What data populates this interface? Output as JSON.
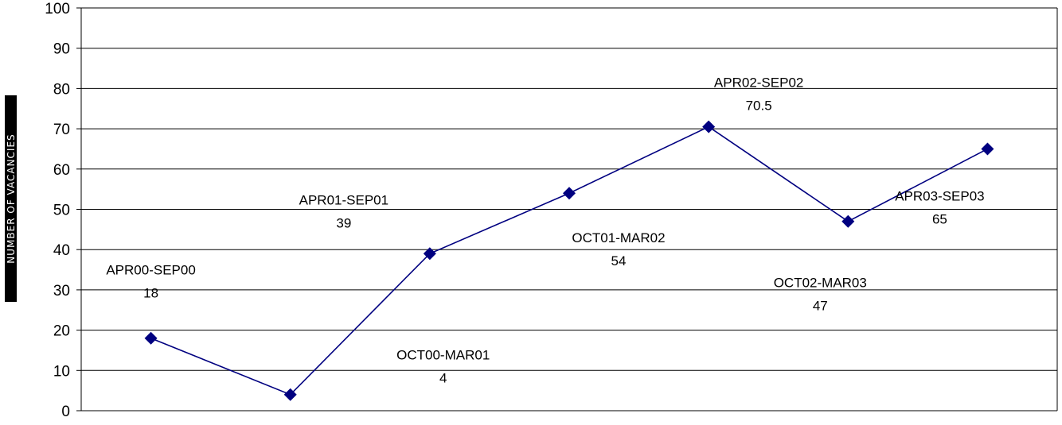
{
  "chart_data": {
    "type": "line",
    "title": "",
    "xlabel": "",
    "ylabel": "NUMBER OF VACANCIES",
    "ylim": [
      0,
      100
    ],
    "yticks": [
      "0",
      "10",
      "20",
      "30",
      "40",
      "50",
      "60",
      "70",
      "80",
      "90",
      "100"
    ],
    "grid": true,
    "line_color": "#000080",
    "categories": [
      "APR00-SEP00",
      "OCT00-MAR01",
      "APR01-SEP01",
      "OCT01-MAR02",
      "APR02-SEP02",
      "OCT02-MAR03",
      "APR03-SEP03"
    ],
    "values": [
      18,
      4,
      39,
      54,
      70.5,
      47,
      65
    ],
    "data_labels": [
      {
        "category": "APR00-SEP00",
        "value": "18"
      },
      {
        "category": "OCT00-MAR01",
        "value": "4"
      },
      {
        "category": "APR01-SEP01",
        "value": "39"
      },
      {
        "category": "OCT01-MAR02",
        "value": "54"
      },
      {
        "category": "APR02-SEP02",
        "value": "70.5"
      },
      {
        "category": "OCT02-MAR03",
        "value": "47"
      },
      {
        "category": "APR03-SEP03",
        "value": "65"
      }
    ]
  }
}
